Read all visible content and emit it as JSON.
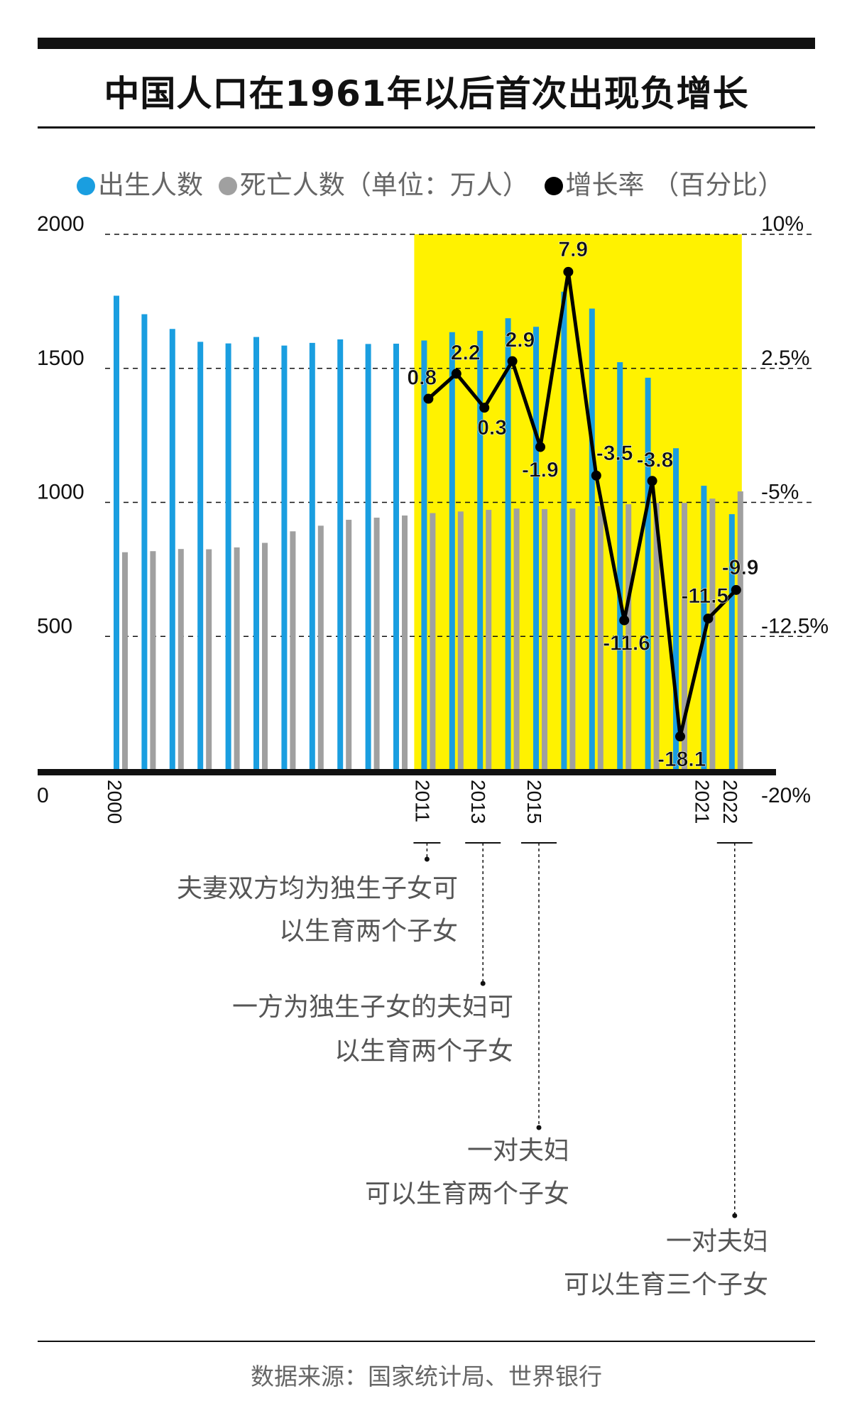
{
  "title": "中国人口在1961年以后首次出现负增长",
  "legend": {
    "births_label": "出生人数",
    "deaths_label": "死亡人数",
    "unit_label": "（单位：万人）",
    "growth_label": "增长率",
    "growth_unit": "（百分比）",
    "births_color": "#1a9ee0",
    "deaths_color": "#a0a0a0",
    "growth_color": "#000000"
  },
  "source": "数据来源：国家统计局、世界银行",
  "chart_data": {
    "type": "bar",
    "x": [
      2000,
      2001,
      2002,
      2003,
      2004,
      2005,
      2006,
      2007,
      2008,
      2009,
      2010,
      2011,
      2012,
      2013,
      2014,
      2015,
      2016,
      2017,
      2018,
      2019,
      2020,
      2021,
      2022
    ],
    "x_tick_labels": [
      "2000",
      "2011",
      "2013",
      "2015",
      "2021",
      "2022"
    ],
    "series": [
      {
        "name": "出生人数",
        "axis": "left",
        "type": "bar",
        "color": "#1a9ee0",
        "values": [
          1771,
          1702,
          1647,
          1599,
          1593,
          1617,
          1585,
          1595,
          1608,
          1591,
          1592,
          1604,
          1635,
          1640,
          1687,
          1655,
          1786,
          1723,
          1523,
          1465,
          1202,
          1062,
          956
        ]
      },
      {
        "name": "死亡人数",
        "axis": "left",
        "type": "bar",
        "color": "#a0a0a0",
        "values": [
          814,
          818,
          826,
          825,
          832,
          849,
          892,
          913,
          935,
          943,
          951,
          960,
          966,
          972,
          977,
          975,
          977,
          986,
          993,
          998,
          998,
          1014,
          1041
        ]
      },
      {
        "name": "增长率",
        "axis": "right",
        "type": "line",
        "color": "#000000",
        "x": [
          2011,
          2012,
          2013,
          2014,
          2015,
          2016,
          2017,
          2018,
          2019,
          2020,
          2021,
          2022
        ],
        "values": [
          0.8,
          2.2,
          0.3,
          2.9,
          -1.9,
          7.9,
          -3.5,
          -11.6,
          -3.8,
          -18.1,
          -11.5,
          -9.9
        ],
        "labels": [
          "0.8",
          "2.2",
          "0.3",
          "2.9",
          "-1.9",
          "7.9",
          "-3.5",
          "-11.6",
          "-3.8",
          "-18.1",
          "-11.5",
          "-9.9"
        ]
      }
    ],
    "left_axis": {
      "ylim": [
        0,
        2000
      ],
      "ticks": [
        0,
        500,
        1000,
        1500,
        2000
      ],
      "tick_labels": [
        "0",
        "500",
        "1000",
        "1500",
        "2000"
      ]
    },
    "right_axis": {
      "ylim": [
        -20,
        10
      ],
      "ticks": [
        -20,
        -12.5,
        -5,
        2.5,
        10
      ],
      "tick_labels": [
        "-20%",
        "-12.5%",
        "-5%",
        "2.5%",
        "10%"
      ]
    },
    "highlight": {
      "from": 2011,
      "to": 2022,
      "color": "#fff200"
    },
    "grid": "dashed horizontal",
    "annotations": [
      {
        "x": 2011,
        "lines": [
          "夫妻双方均为独生子女可",
          "以生育两个子女"
        ]
      },
      {
        "x": 2013,
        "lines": [
          "一方为独生子女的夫妇可",
          "以生育两个子女"
        ]
      },
      {
        "x": 2015,
        "lines": [
          "一对夫妇",
          "可以生育两个子女"
        ]
      },
      {
        "x": 2022,
        "lines": [
          "一对夫妇",
          "可以生育三个子女"
        ]
      }
    ]
  }
}
